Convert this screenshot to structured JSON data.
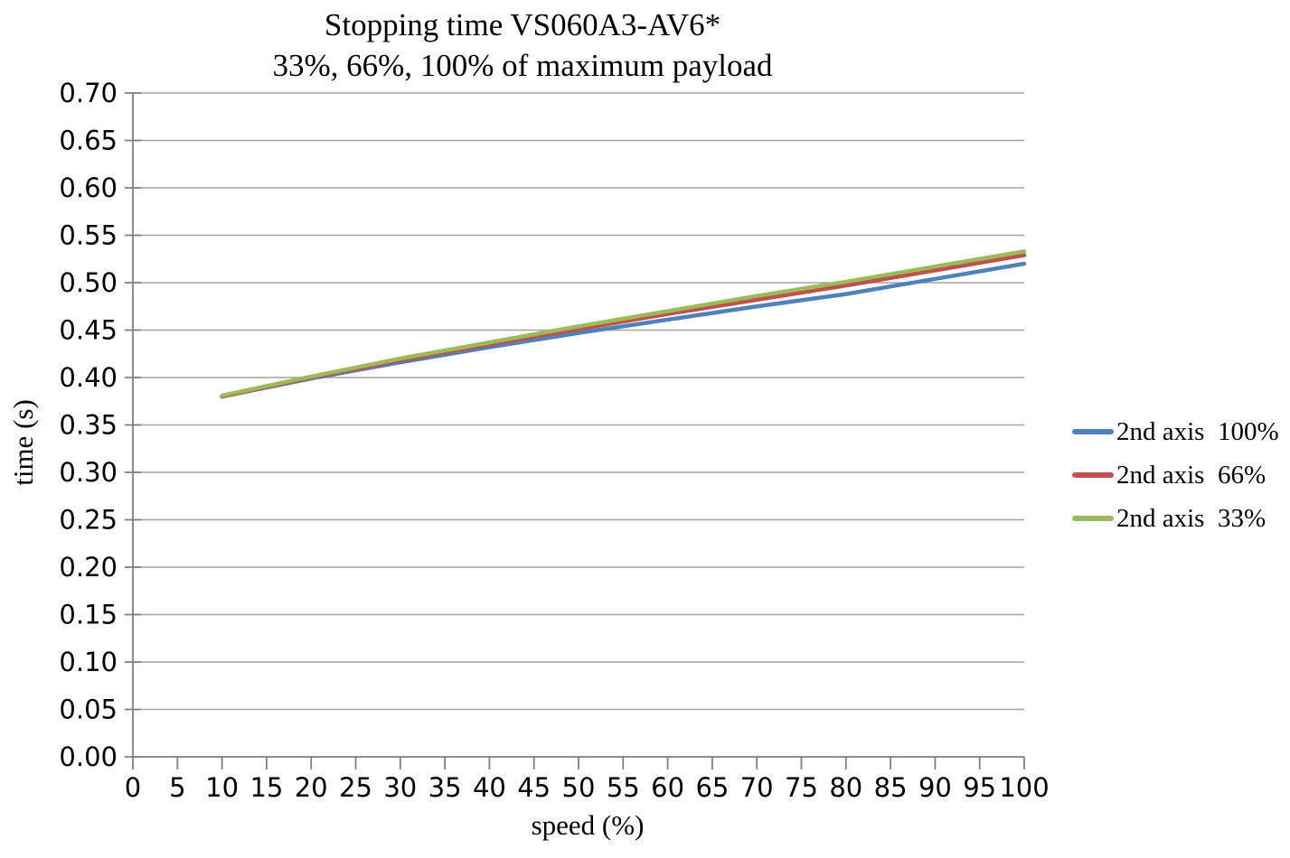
{
  "chart_data": {
    "type": "line",
    "title": "Stopping time VS060A3-AV6*",
    "subtitle": "33%, 66%, 100% of maximum payload",
    "xlabel": "speed (%)",
    "ylabel": "time (s)",
    "xlim": [
      0,
      100
    ],
    "ylim": [
      0,
      0.7
    ],
    "x_ticks": [
      0,
      5,
      10,
      15,
      20,
      25,
      30,
      35,
      40,
      45,
      50,
      55,
      60,
      65,
      70,
      75,
      80,
      85,
      90,
      95,
      100
    ],
    "y_ticks": [
      "0.00",
      "0.05",
      "0.10",
      "0.15",
      "0.20",
      "0.25",
      "0.30",
      "0.35",
      "0.40",
      "0.45",
      "0.50",
      "0.55",
      "0.60",
      "0.65",
      "0.70"
    ],
    "grid": "horizontal gridlines on",
    "legend_position": "right",
    "grid_color": "#A3A3A3",
    "axis_color": "#7F7F7F",
    "x": [
      10,
      20,
      30,
      40,
      50,
      60,
      70,
      80,
      90,
      100
    ],
    "series": [
      {
        "name": "2nd axis  100%",
        "color": "#4F81BD",
        "values": [
          0.38,
          0.399,
          0.416,
          0.432,
          0.447,
          0.461,
          0.475,
          0.488,
          0.504,
          0.52
        ]
      },
      {
        "name": "2nd axis  66%",
        "color": "#C0504D",
        "values": [
          0.38,
          0.4,
          0.418,
          0.435,
          0.451,
          0.467,
          0.482,
          0.497,
          0.513,
          0.529
        ]
      },
      {
        "name": "2nd axis  33%",
        "color": "#9BBB59",
        "values": [
          0.381,
          0.401,
          0.42,
          0.437,
          0.454,
          0.47,
          0.486,
          0.501,
          0.517,
          0.533
        ]
      }
    ]
  }
}
